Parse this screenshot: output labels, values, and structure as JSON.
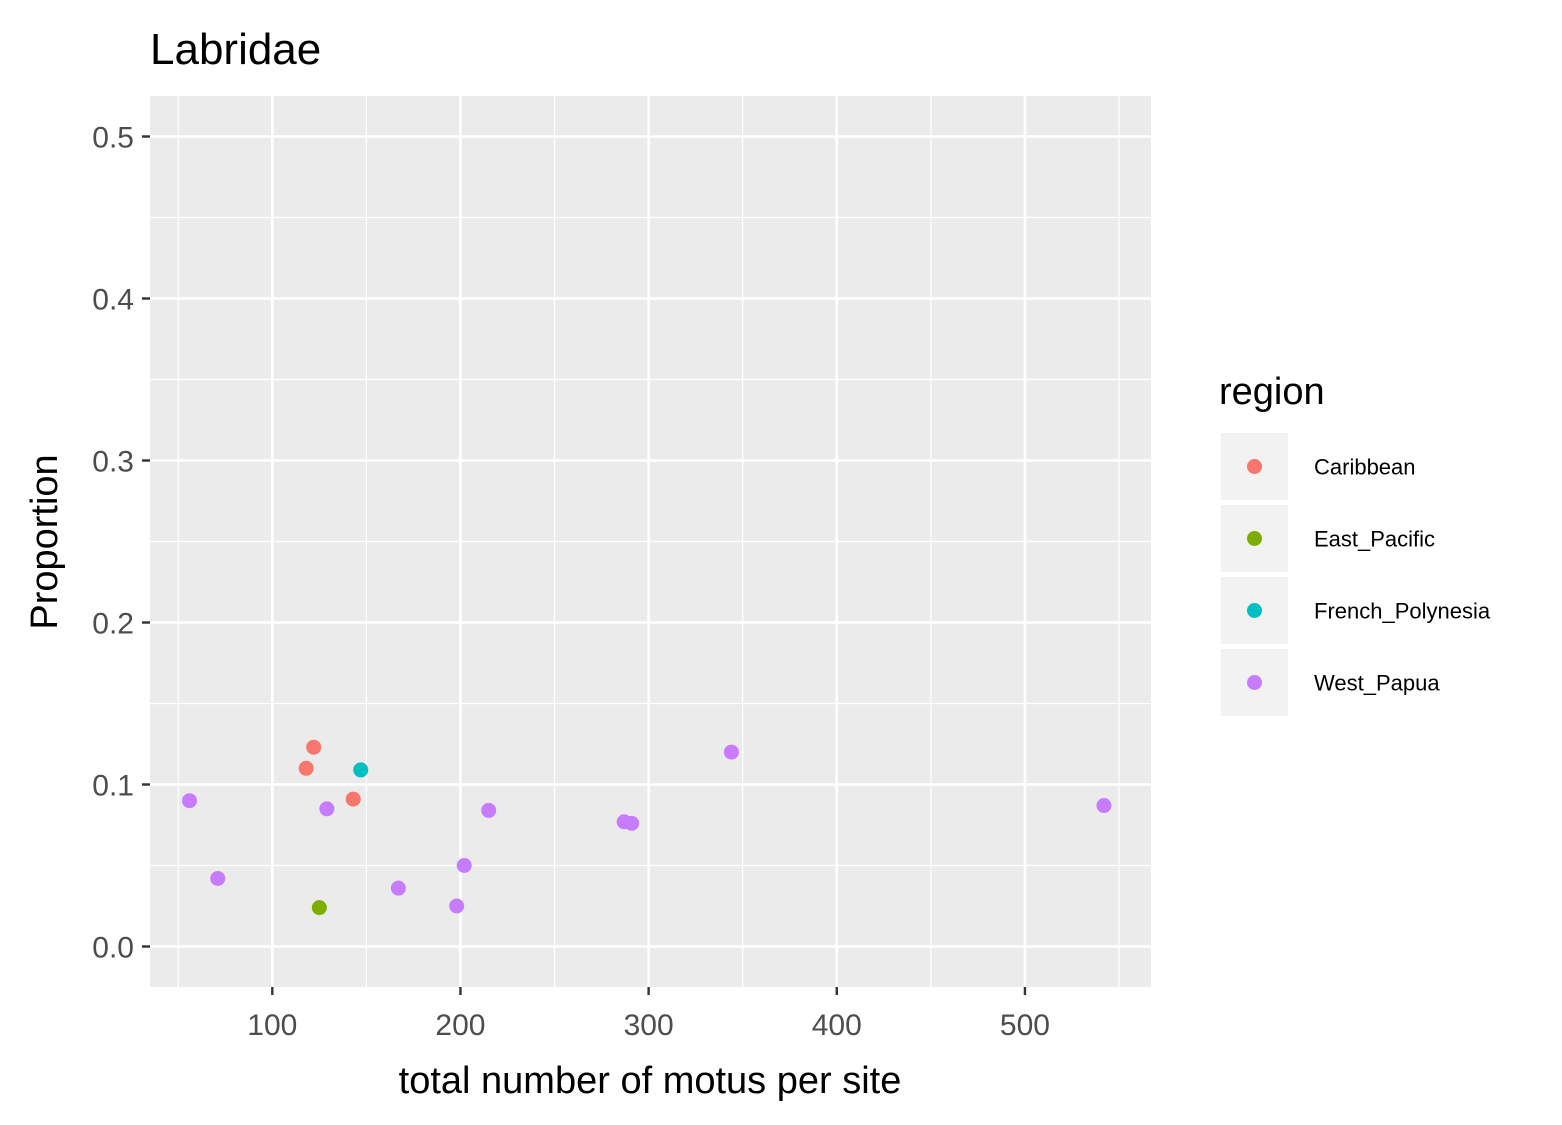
{
  "chart_data": {
    "type": "scatter",
    "title": "Labridae",
    "xlabel": "total number of motus per site",
    "ylabel": "Proportion",
    "xlim": [
      35,
      567
    ],
    "ylim": [
      -0.025,
      0.525
    ],
    "xticks": [
      100,
      200,
      300,
      400,
      500
    ],
    "xtick_labels": [
      "100",
      "200",
      "300",
      "400",
      "500"
    ],
    "yticks": [
      0.0,
      0.1,
      0.2,
      0.3,
      0.4,
      0.5
    ],
    "ytick_labels": [
      "0.0",
      "0.1",
      "0.2",
      "0.3",
      "0.4",
      "0.5"
    ],
    "grid": true,
    "legend": {
      "title": "region",
      "position": "right"
    },
    "series": [
      {
        "name": "Caribbean",
        "color": "#F8766D",
        "points": [
          [
            118,
            0.11
          ],
          [
            122,
            0.123
          ],
          [
            143,
            0.091
          ]
        ]
      },
      {
        "name": "East_Pacific",
        "color": "#7CAE00",
        "points": [
          [
            125,
            0.024
          ]
        ]
      },
      {
        "name": "French_Polynesia",
        "color": "#00BFC4",
        "points": [
          [
            147,
            0.109
          ]
        ]
      },
      {
        "name": "West_Papua",
        "color": "#C77CFF",
        "points": [
          [
            56,
            0.09
          ],
          [
            71,
            0.042
          ],
          [
            129,
            0.085
          ],
          [
            167,
            0.036
          ],
          [
            198,
            0.025
          ],
          [
            202,
            0.05
          ],
          [
            215,
            0.084
          ],
          [
            287,
            0.077
          ],
          [
            291,
            0.076
          ],
          [
            344,
            0.12
          ],
          [
            542,
            0.087
          ]
        ]
      }
    ]
  }
}
